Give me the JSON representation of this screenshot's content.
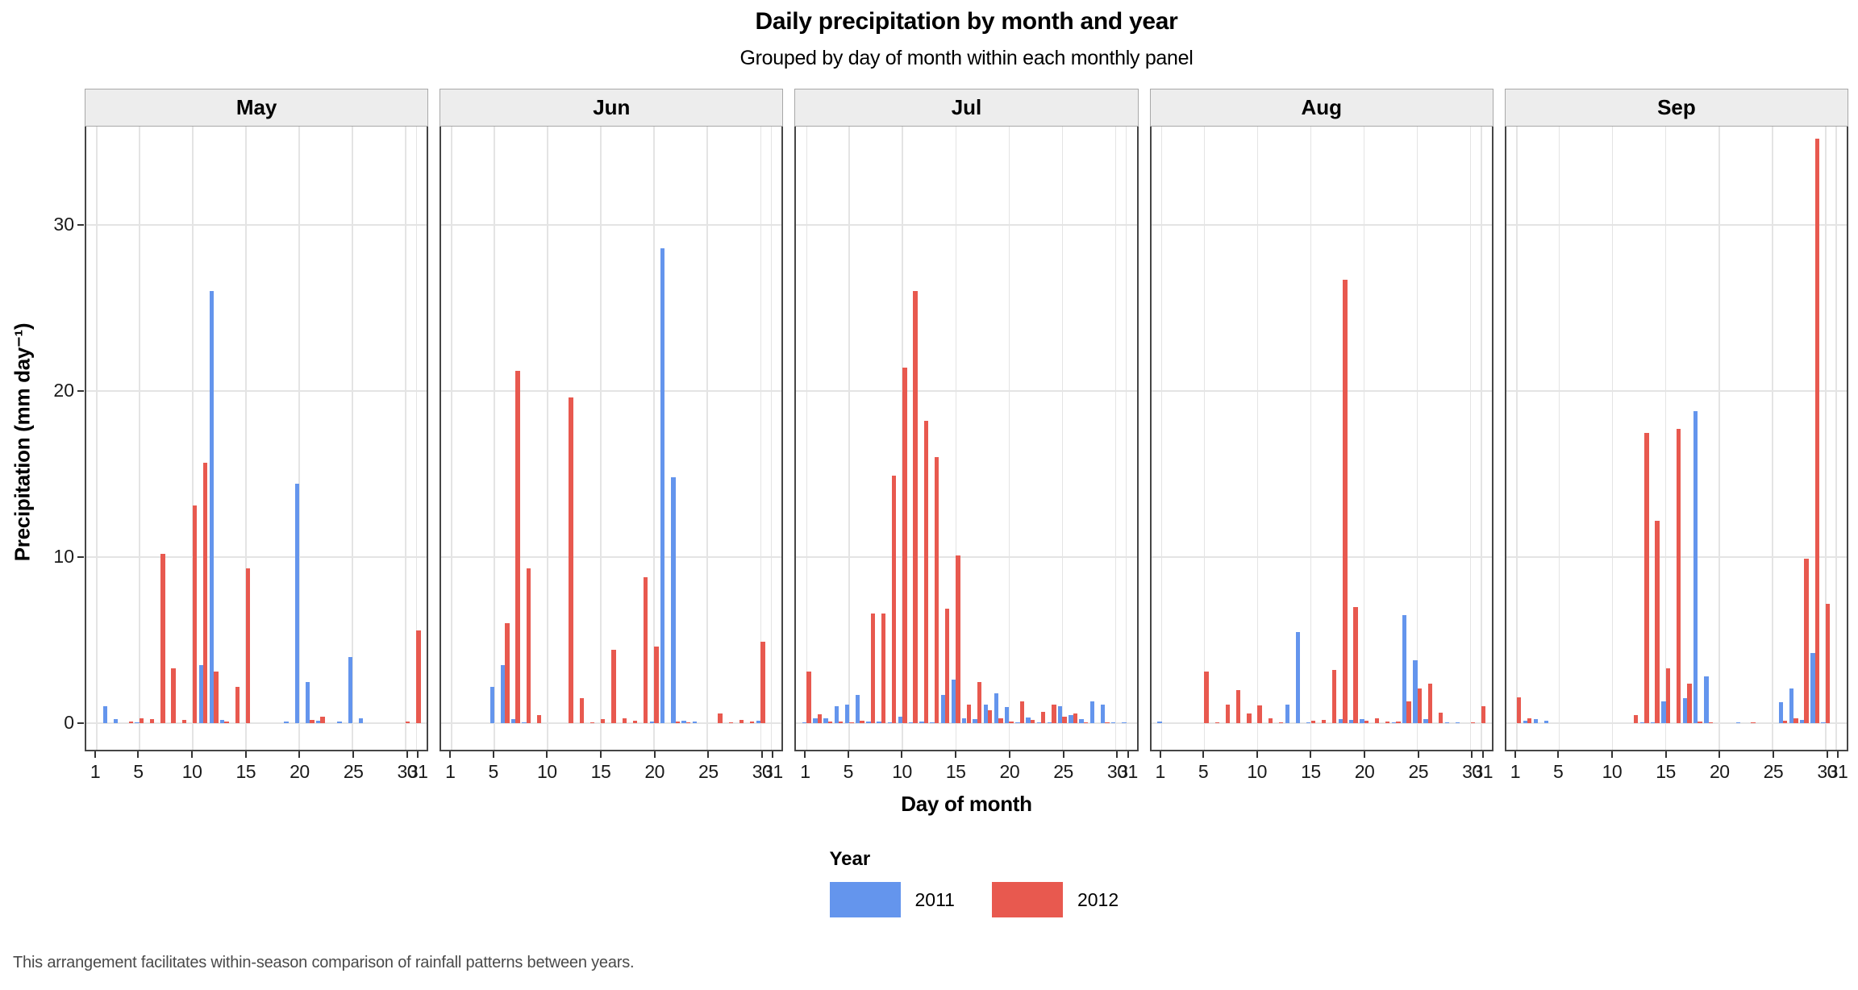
{
  "title": "Daily precipitation by month and year",
  "subtitle": "Grouped by day of month within each monthly panel",
  "caption": "This arrangement facilitates within-season comparison of rainfall patterns between years.",
  "colors": {
    "year_2011": "#6495ED",
    "year_2012": "#E8594F",
    "gridline": "#E4E4E4",
    "strip_bg": "#EDEDED",
    "strip_border": "#A8A8A8",
    "panel_border": "#464646"
  },
  "chart_data": {
    "type": "bar",
    "title": "Daily precipitation by month and year",
    "subtitle": "Grouped by day of month within each monthly panel",
    "xlabel": "Day of month",
    "ylabel": "Precipitation (mm day⁻¹)",
    "ylim": [
      0,
      36
    ],
    "yticks": [
      0,
      10,
      20,
      30
    ],
    "xticks": [
      1,
      5,
      10,
      15,
      20,
      25,
      30,
      31
    ],
    "grid": "major only, light gray on white panels, dark panel borders, gray facet strips",
    "legend": {
      "title": "Year",
      "position": "bottom-center",
      "entries": [
        {
          "label": "2011",
          "color": "#6495ED"
        },
        {
          "label": "2012",
          "color": "#E8594F"
        }
      ]
    },
    "panels": [
      {
        "month": "May",
        "days": [
          1,
          2,
          3,
          4,
          5,
          6,
          7,
          8,
          9,
          10,
          11,
          12,
          13,
          14,
          15,
          16,
          17,
          18,
          19,
          20,
          21,
          22,
          23,
          24,
          25,
          26,
          27,
          28,
          29,
          30,
          31
        ],
        "values_2011": [
          0,
          1.0,
          0.25,
          0,
          0.05,
          0,
          0,
          0,
          0,
          0,
          3.5,
          26.0,
          0.2,
          0,
          0,
          0,
          0,
          0,
          0.1,
          14.4,
          2.5,
          0.15,
          0,
          0.1,
          4.0,
          0.3,
          0,
          0,
          0,
          0,
          0
        ],
        "values_2012": [
          0,
          0,
          0,
          0.1,
          0.3,
          0.25,
          10.2,
          3.3,
          0.2,
          13.1,
          15.7,
          3.1,
          0.1,
          2.2,
          9.3,
          0,
          0,
          0,
          0,
          0,
          0.2,
          0.4,
          0,
          0,
          0,
          0,
          0,
          0,
          0,
          0.1,
          5.6
        ]
      },
      {
        "month": "Jun",
        "days": [
          1,
          2,
          3,
          4,
          5,
          6,
          7,
          8,
          9,
          10,
          11,
          12,
          13,
          14,
          15,
          16,
          17,
          18,
          19,
          20,
          21,
          22,
          23,
          24,
          25,
          26,
          27,
          28,
          29,
          30,
          31
        ],
        "values_2011": [
          0,
          0,
          0,
          0,
          2.2,
          3.5,
          0.25,
          0.05,
          0,
          0,
          0,
          0,
          0,
          0,
          0,
          0,
          0,
          0,
          0,
          0.1,
          28.6,
          14.8,
          0.15,
          0.1,
          0,
          0,
          0,
          0,
          0,
          0.15,
          0
        ],
        "values_2012": [
          0,
          0,
          0,
          0,
          0,
          6.0,
          21.2,
          9.3,
          0.5,
          0,
          0,
          19.6,
          1.5,
          0.05,
          0.25,
          4.4,
          0.3,
          0.15,
          8.8,
          4.6,
          0,
          0.1,
          0.05,
          0,
          0,
          0.6,
          0.05,
          0.2,
          0.1,
          4.9,
          0
        ]
      },
      {
        "month": "Jul",
        "days": [
          1,
          2,
          3,
          4,
          5,
          6,
          7,
          8,
          9,
          10,
          11,
          12,
          13,
          14,
          15,
          16,
          17,
          18,
          19,
          20,
          21,
          22,
          23,
          24,
          25,
          26,
          27,
          28,
          29,
          30,
          31
        ],
        "values_2011": [
          0.05,
          0.3,
          0.3,
          1.0,
          1.1,
          1.7,
          0.1,
          0.08,
          0.05,
          0.4,
          0.05,
          0.1,
          0.05,
          1.7,
          2.6,
          0.3,
          0.25,
          1.1,
          1.8,
          0.95,
          0.05,
          0.35,
          0.05,
          0.05,
          1.0,
          0.5,
          0.25,
          1.3,
          1.1,
          0.05,
          0.05
        ],
        "values_2012": [
          3.1,
          0.55,
          0.1,
          0.1,
          0.05,
          0.13,
          6.6,
          6.6,
          14.9,
          21.4,
          26.0,
          18.2,
          16.0,
          6.9,
          10.1,
          1.1,
          2.5,
          0.8,
          0.3,
          0.1,
          1.3,
          0.2,
          0.7,
          1.1,
          0.4,
          0.6,
          0.07,
          0,
          0.05,
          0,
          0
        ]
      },
      {
        "month": "Aug",
        "days": [
          1,
          2,
          3,
          4,
          5,
          6,
          7,
          8,
          9,
          10,
          11,
          12,
          13,
          14,
          15,
          16,
          17,
          18,
          19,
          20,
          21,
          22,
          23,
          24,
          25,
          26,
          27,
          28,
          29,
          30,
          31
        ],
        "values_2011": [
          0.1,
          0,
          0,
          0,
          0,
          0,
          0,
          0,
          0,
          0,
          0,
          0,
          1.1,
          5.5,
          0.07,
          0,
          0,
          0.25,
          0.2,
          0.25,
          0,
          0,
          0.05,
          6.5,
          3.8,
          0.25,
          0,
          0.05,
          0.07,
          0,
          0
        ],
        "values_2012": [
          0,
          0,
          0,
          0,
          3.1,
          0.07,
          1.1,
          2.0,
          0.6,
          1.05,
          0.3,
          0.07,
          0,
          0,
          0.15,
          0.2,
          3.2,
          26.7,
          7.0,
          0.15,
          0.3,
          0.1,
          0.1,
          1.3,
          2.1,
          2.4,
          0.65,
          0,
          0,
          0.07,
          1.0
        ]
      },
      {
        "month": "Sep",
        "days": [
          1,
          2,
          3,
          4,
          5,
          6,
          7,
          8,
          9,
          10,
          11,
          12,
          13,
          14,
          15,
          16,
          17,
          18,
          19,
          20,
          21,
          22,
          23,
          24,
          25,
          26,
          27,
          28,
          29,
          30,
          31
        ],
        "values_2011": [
          0,
          0.15,
          0.25,
          0.15,
          0,
          0,
          0,
          0,
          0,
          0,
          0,
          0,
          0.05,
          0.05,
          1.3,
          0,
          1.5,
          18.8,
          2.8,
          0,
          0,
          0.07,
          0,
          0,
          0,
          1.25,
          2.1,
          0.2,
          4.2,
          0.05,
          0
        ],
        "values_2012": [
          1.55,
          0.3,
          0,
          0,
          0,
          0,
          0,
          0,
          0,
          0,
          0,
          0.5,
          17.5,
          12.2,
          3.3,
          17.7,
          2.4,
          0.1,
          0.05,
          0,
          0,
          0,
          0.07,
          0,
          0,
          0.15,
          0.3,
          9.9,
          35.2,
          7.2,
          0
        ]
      }
    ]
  }
}
